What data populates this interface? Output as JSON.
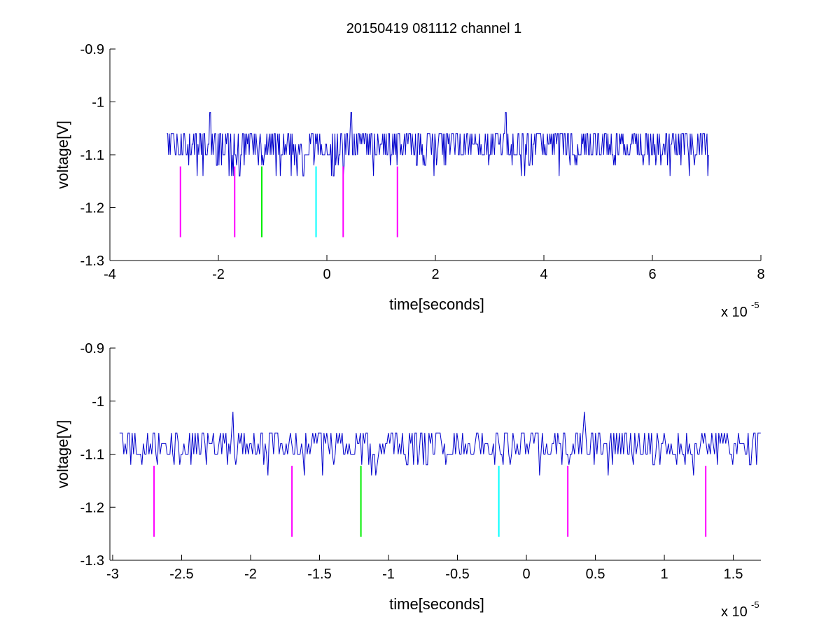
{
  "figure_title": "20150419 081112 channel 1",
  "chart_data": [
    {
      "type": "line",
      "title": "20150419 081112 channel 1",
      "xlabel": "time[seconds]",
      "ylabel": "voltage[V]",
      "x_multiplier": "x 10",
      "x_exponent": "-5",
      "xlim": [
        -4,
        8
      ],
      "ylim": [
        -1.3,
        -0.9
      ],
      "x_ticks": [
        -4,
        -2,
        0,
        2,
        4,
        6,
        8
      ],
      "x_tick_labels": [
        "-4",
        "-2",
        "0",
        "2",
        "4",
        "6",
        "8"
      ],
      "y_ticks": [
        -1.3,
        -1.2,
        -1.1,
        -1.0,
        -0.9
      ],
      "y_tick_labels": [
        "-1.3",
        "-1.2",
        "-1.1",
        "-1",
        "-0.9"
      ],
      "grid": false,
      "series": [
        {
          "color": "#0000cc",
          "x_range": [
            -2.95,
            7.05
          ],
          "baseline": -1.1,
          "levels": [
            -1.14,
            -1.12,
            -1.1,
            -1.08,
            -1.06
          ],
          "spikes": [
            {
              "x": -2.15,
              "y": -1.02
            },
            {
              "x": 0.45,
              "y": -1.02
            },
            {
              "x": 3.3,
              "y": -1.02
            }
          ]
        }
      ],
      "markers": [
        {
          "x": -2.7,
          "y_top": -1.122,
          "y_bottom": -1.256,
          "color": "#ff00ff"
        },
        {
          "x": -1.7,
          "y_top": -1.122,
          "y_bottom": -1.256,
          "color": "#ff00ff"
        },
        {
          "x": -1.2,
          "y_top": -1.122,
          "y_bottom": -1.256,
          "color": "#00ee00"
        },
        {
          "x": -0.2,
          "y_top": -1.122,
          "y_bottom": -1.256,
          "color": "#00ffff"
        },
        {
          "x": 0.3,
          "y_top": -1.122,
          "y_bottom": -1.256,
          "color": "#ff00ff"
        },
        {
          "x": 1.3,
          "y_top": -1.122,
          "y_bottom": -1.256,
          "color": "#ff00ff"
        }
      ]
    },
    {
      "type": "line",
      "xlabel": "time[seconds]",
      "ylabel": "voltage[V]",
      "x_multiplier": "x 10",
      "x_exponent": "-5",
      "xlim": [
        -3.02,
        1.7
      ],
      "ylim": [
        -1.3,
        -0.9
      ],
      "x_ticks": [
        -3,
        -2.5,
        -2,
        -1.5,
        -1,
        -0.5,
        0,
        0.5,
        1,
        1.5
      ],
      "x_tick_labels": [
        "-3",
        "-2.5",
        "-2",
        "-1.5",
        "-1",
        "-0.5",
        "0",
        "0.5",
        "1",
        "1.5"
      ],
      "y_ticks": [
        -1.3,
        -1.2,
        -1.1,
        -1.0,
        -0.9
      ],
      "y_tick_labels": [
        "-1.3",
        "-1.2",
        "-1.1",
        "-1",
        "-0.9"
      ],
      "grid": false,
      "series": [
        {
          "color": "#0000cc",
          "x_range": [
            -2.95,
            1.7
          ],
          "baseline": -1.1,
          "levels": [
            -1.14,
            -1.12,
            -1.1,
            -1.08,
            -1.06
          ],
          "spikes": [
            {
              "x": -2.13,
              "y": -1.02
            },
            {
              "x": 0.42,
              "y": -1.02
            }
          ]
        }
      ],
      "markers": [
        {
          "x": -2.7,
          "y_top": -1.122,
          "y_bottom": -1.256,
          "color": "#ff00ff"
        },
        {
          "x": -1.7,
          "y_top": -1.122,
          "y_bottom": -1.256,
          "color": "#ff00ff"
        },
        {
          "x": -1.2,
          "y_top": -1.122,
          "y_bottom": -1.256,
          "color": "#00ee00"
        },
        {
          "x": -0.2,
          "y_top": -1.122,
          "y_bottom": -1.256,
          "color": "#00ffff"
        },
        {
          "x": 0.3,
          "y_top": -1.122,
          "y_bottom": -1.256,
          "color": "#ff00ff"
        },
        {
          "x": 1.3,
          "y_top": -1.122,
          "y_bottom": -1.256,
          "color": "#ff00ff"
        }
      ]
    }
  ]
}
